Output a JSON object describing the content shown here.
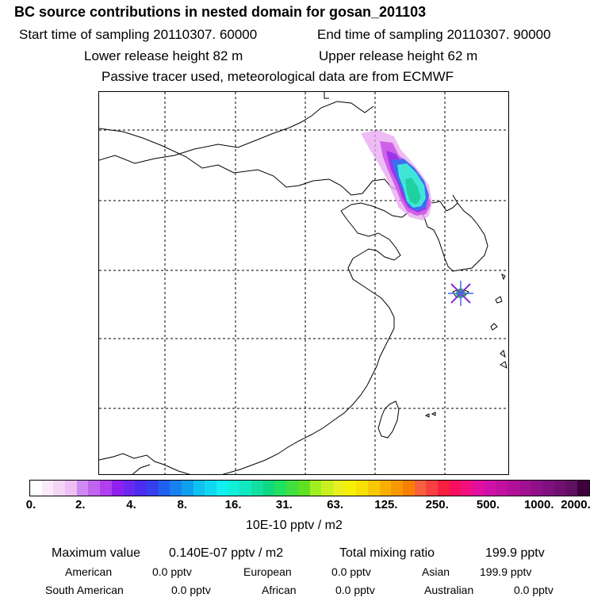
{
  "header": {
    "title": "BC  source contributions in nested domain for gosan_201103",
    "start_time": "Start time of sampling 20110307. 60000",
    "end_time": "End time of sampling 20110307. 90000",
    "lower_height": "Lower release height   82 m",
    "upper_height": "Upper release height   62 m",
    "tracer_info": "Passive tracer used, meteorological data are from ECMWF"
  },
  "map": {
    "plume_colors": {
      "outer": "#e8a6f0",
      "magenta": "#d060e8",
      "violet": "#9b34e8",
      "blue": "#3f6cf0",
      "cyan": "#3fe6d8",
      "teal": "#20d0a0",
      "marker": "#8a2be2"
    }
  },
  "colorbar": {
    "colors": [
      "#ffffff",
      "#fbeafc",
      "#f4d4f7",
      "#eebff3",
      "#cf8af2",
      "#c064f0",
      "#b040ee",
      "#8f20ee",
      "#6a28f0",
      "#4b2cf0",
      "#3440f0",
      "#2060ef",
      "#1a80f0",
      "#10a0f0",
      "#10c0f0",
      "#10d8f0",
      "#10f0f0",
      "#10f0d8",
      "#10e8c0",
      "#10e0a0",
      "#10d880",
      "#20e060",
      "#40e040",
      "#60e020",
      "#a0f020",
      "#c8f020",
      "#e8f020",
      "#f8f000",
      "#f8e000",
      "#f8c800",
      "#f8b000",
      "#f89800",
      "#f88000",
      "#f86040",
      "#f84040",
      "#f82040",
      "#f81060",
      "#f01080",
      "#e010a0",
      "#d010a8",
      "#c010a0",
      "#b01098",
      "#a01090",
      "#901088",
      "#801080",
      "#701070",
      "#601060",
      "#400040"
    ],
    "tick_labels": [
      "0.",
      "2.",
      "4.",
      "8.",
      "16.",
      "31.",
      "63.",
      "125.",
      "250.",
      "500.",
      "1000.",
      "2000."
    ],
    "units": "10E-10 pptv / m2"
  },
  "summary": {
    "max_label": "Maximum value",
    "max_value": "0.140E-07 pptv / m2",
    "total_label": "Total mixing ratio",
    "total_value": "199.9 pptv"
  },
  "sources": {
    "american_label": "American",
    "american_value": "0.0 pptv",
    "european_label": "European",
    "european_value": "0.0 pptv",
    "asian_label": "Asian",
    "asian_value": "199.9 pptv",
    "south_american_label": "South American",
    "south_american_value": "0.0 pptv",
    "african_label": "African",
    "african_value": "0.0 pptv",
    "australian_label": "Australian",
    "australian_value": "0.0 pptv"
  }
}
